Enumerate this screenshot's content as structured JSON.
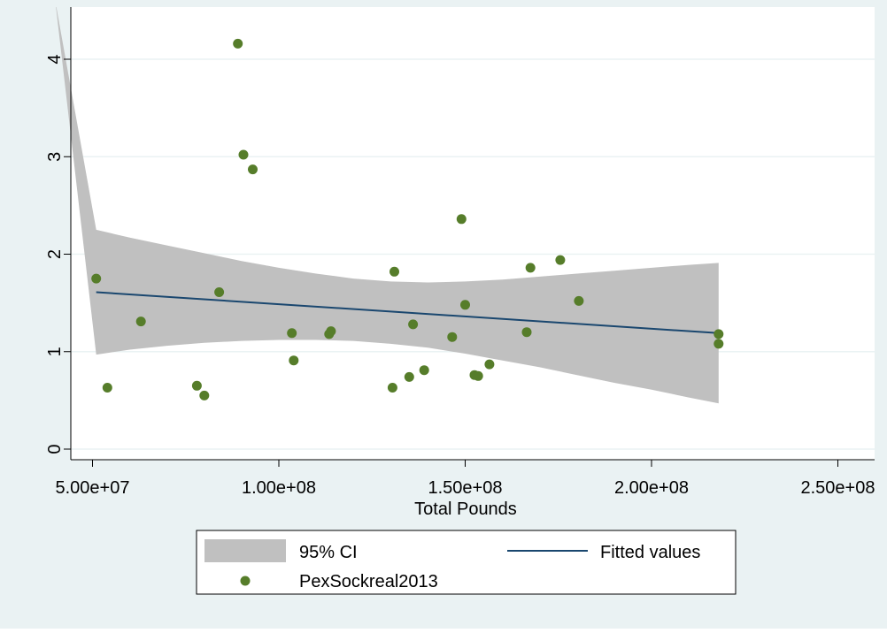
{
  "chart_data": {
    "type": "scatter",
    "xlabel": "Total Pounds",
    "ylabel": "",
    "xlim": [
      50000000,
      250000000
    ],
    "ylim": [
      0,
      4.2
    ],
    "x_ticks": [
      50000000,
      100000000,
      150000000,
      200000000,
      250000000
    ],
    "x_tick_labels": [
      "5.00e+07",
      "1.00e+08",
      "1.50e+08",
      "2.00e+08",
      "2.50e+08"
    ],
    "y_ticks": [
      0,
      1,
      2,
      3,
      4
    ],
    "y_tick_labels": [
      "0",
      "1",
      "2",
      "3",
      "4"
    ],
    "grid": "horizontal",
    "legend_position": "bottom",
    "series": [
      {
        "name": "PexSockreal2013",
        "kind": "scatter",
        "color": "#567d2a",
        "points": [
          [
            51000000,
            1.75
          ],
          [
            54000000,
            0.63
          ],
          [
            63000000,
            1.31
          ],
          [
            78000000,
            0.65
          ],
          [
            80000000,
            0.55
          ],
          [
            84000000,
            1.61
          ],
          [
            89000000,
            4.16
          ],
          [
            90500000,
            3.02
          ],
          [
            93000000,
            2.87
          ],
          [
            103500000,
            1.19
          ],
          [
            104000000,
            0.91
          ],
          [
            113500000,
            1.18
          ],
          [
            114000000,
            1.21
          ],
          [
            130500000,
            0.63
          ],
          [
            131000000,
            1.82
          ],
          [
            135000000,
            0.74
          ],
          [
            136000000,
            1.28
          ],
          [
            139000000,
            0.81
          ],
          [
            146500000,
            1.15
          ],
          [
            149000000,
            2.36
          ],
          [
            150000000,
            1.48
          ],
          [
            152500000,
            0.76
          ],
          [
            153500000,
            0.75
          ],
          [
            156500000,
            0.87
          ],
          [
            166500000,
            1.2
          ],
          [
            167500000,
            1.86
          ],
          [
            175500000,
            1.94
          ],
          [
            180500000,
            1.52
          ],
          [
            218000000,
            1.18
          ],
          [
            218000000,
            1.08
          ]
        ]
      },
      {
        "name": "Fitted values",
        "kind": "line",
        "color": "#1a476f",
        "points": [
          [
            51000000,
            1.61
          ],
          [
            218000000,
            1.19
          ]
        ]
      },
      {
        "name": "95% CI",
        "kind": "band",
        "color": "#c0c0c0",
        "x": [
          40000000,
          51000000,
          60000000,
          70000000,
          80000000,
          90000000,
          100000000,
          110000000,
          120000000,
          130000000,
          140000000,
          150000000,
          160000000,
          170000000,
          180000000,
          190000000,
          200000000,
          210000000,
          218000000
        ],
        "lower": [
          4.6,
          0.97,
          1.02,
          1.06,
          1.09,
          1.11,
          1.12,
          1.12,
          1.11,
          1.08,
          1.04,
          0.98,
          0.91,
          0.84,
          0.76,
          0.68,
          0.61,
          0.53,
          0.47
        ],
        "upper": [
          4.6,
          2.25,
          2.17,
          2.09,
          2.01,
          1.93,
          1.86,
          1.8,
          1.75,
          1.72,
          1.71,
          1.72,
          1.74,
          1.77,
          1.8,
          1.83,
          1.86,
          1.89,
          1.91
        ]
      }
    ]
  },
  "legend": {
    "ci_label": "95% CI",
    "fit_label": "Fitted values",
    "scatter_label": "PexSockreal2013"
  },
  "colors": {
    "outer_background": "#eaf2f3",
    "plot_background": "#ffffff",
    "grid": "#eaf2f3",
    "ci_band": "#c0c0c0",
    "fit_line": "#1a476f",
    "marker": "#567d2a"
  }
}
